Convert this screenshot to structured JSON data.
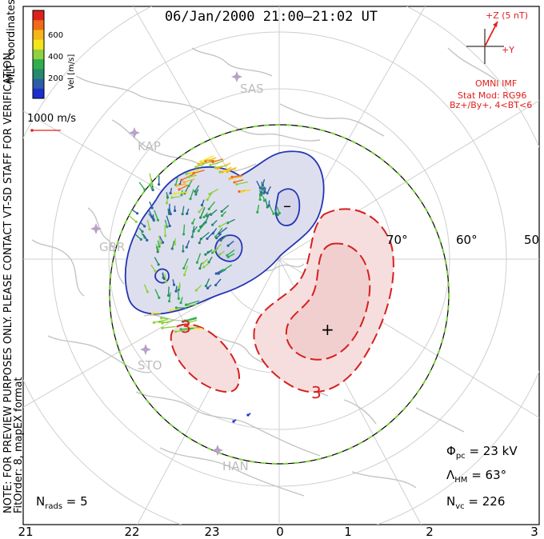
{
  "header": {
    "title": "06/Jan/2000 21:00–21:02 UT"
  },
  "colorbar": {
    "title": "Vel [m/s]",
    "ticks": [
      "600",
      "400",
      "200"
    ],
    "colors": [
      "#e0201c",
      "#f06a18",
      "#f6b519",
      "#f3e41c",
      "#8fd13e",
      "#2fae4e",
      "#258a6b",
      "#2c5ea5",
      "#1b2fcf"
    ]
  },
  "vector_scale": {
    "label": "1000 m/s"
  },
  "coords_label": "MLT coordinates",
  "disclaimer": "NOTE: FOR PREVIEW PURPOSES ONLY. PLEASE CONTACT VT-SD STAFF FOR VERIFICATION.",
  "fit_info": "FitOrder: 8, mapEX format",
  "imf": {
    "z_label": "+Z (5 nT)",
    "y_label": "+Y",
    "source": "OMNI IMF",
    "model": "Stat Mod: RG96",
    "condition": "Bz+/By+, 4<BT<6"
  },
  "stations": [
    {
      "code": "SAS"
    },
    {
      "code": "KAP"
    },
    {
      "code": "GBR"
    },
    {
      "code": "STO"
    },
    {
      "code": "HAN"
    }
  ],
  "latitude_labels": [
    "70°",
    "60°",
    "50°"
  ],
  "contour_labels": {
    "negative": "–",
    "positive": "+",
    "three_a": "3",
    "three_b": "3"
  },
  "stats": {
    "phi_sym": "Φ",
    "phi_sub": "pc",
    "phi_val": " = 23 kV",
    "lambda_sym": "Λ",
    "lambda_sub": "HM",
    "lambda_val": " = 63°",
    "nvc_sym": "N",
    "nvc_sub": "vc",
    "nvc_val": " = 226",
    "nrads_sym": "N",
    "nrads_sub": "rads",
    "nrads_val": " = 5"
  },
  "mlt_axis": [
    "21",
    "22",
    "23",
    "0",
    "1",
    "2",
    "3"
  ],
  "colors": {
    "negative_cell": "#2236b4",
    "positive_cell": "#d62020",
    "negative_fill": "#dedfee",
    "positive_fill": "#f6dede",
    "coast": "#c4c4c4",
    "boundary_green": "#7ad13a"
  }
}
